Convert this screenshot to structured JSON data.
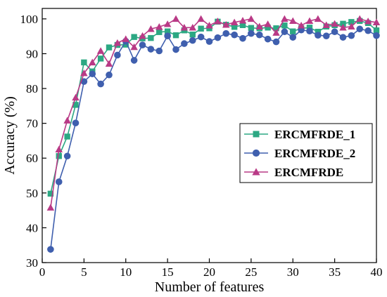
{
  "chart_data": {
    "type": "line",
    "title": "",
    "xlabel": "Number of features",
    "ylabel": "Accuracy (%)",
    "xlim": [
      0,
      40
    ],
    "ylim": [
      30,
      103
    ],
    "xticks": [
      "0",
      "5",
      "10",
      "15",
      "20",
      "25",
      "30",
      "35",
      "40"
    ],
    "yticks": [
      "30",
      "40",
      "50",
      "60",
      "70",
      "80",
      "90",
      "100"
    ],
    "grid": false,
    "legend_position": "center-right",
    "x": [
      1,
      2,
      3,
      4,
      5,
      6,
      7,
      8,
      9,
      10,
      11,
      12,
      13,
      14,
      15,
      16,
      17,
      18,
      19,
      20,
      21,
      22,
      23,
      24,
      25,
      26,
      27,
      28,
      29,
      30,
      31,
      32,
      33,
      34,
      35,
      36,
      37,
      38,
      39,
      40
    ],
    "series": [
      {
        "name": "ERCMFRDE_1",
        "color": "#2ca883",
        "marker": "square",
        "values": [
          49.8,
          60.6,
          66.2,
          75.3,
          87.5,
          84.9,
          88.6,
          91.8,
          92.5,
          92.6,
          94.8,
          94.4,
          94.5,
          96.2,
          96.4,
          95.3,
          96.7,
          95.5,
          97.2,
          97.3,
          99.2,
          98.3,
          97.7,
          98.2,
          97.4,
          97.3,
          97.5,
          97.3,
          98.1,
          96.4,
          97.3,
          97.5,
          96.3,
          97.8,
          98.2,
          98.6,
          99.1,
          99.4,
          98.8,
          96.7
        ]
      },
      {
        "name": "ERCMFRDE_2",
        "color": "#3f5fae",
        "marker": "circle",
        "values": [
          33.8,
          53.2,
          60.6,
          70.1,
          82.0,
          84.2,
          81.3,
          83.9,
          89.6,
          93.6,
          88.1,
          92.5,
          91.3,
          90.8,
          95.1,
          91.2,
          92.9,
          93.8,
          94.8,
          93.5,
          94.6,
          95.8,
          95.4,
          94.4,
          95.8,
          95.4,
          94.2,
          93.4,
          96.3,
          94.7,
          96.8,
          96.5,
          95.3,
          95.1,
          96.3,
          94.7,
          95.2,
          97.1,
          96.6,
          95.2
        ]
      },
      {
        "name": "ERCMFRDE",
        "color": "#b93a86",
        "marker": "triangle",
        "values": [
          45.8,
          62.5,
          70.8,
          77.4,
          84.4,
          87.5,
          90.8,
          87.1,
          93.1,
          94.2,
          91.9,
          95.1,
          97.1,
          97.7,
          98.5,
          100.0,
          97.5,
          97.5,
          100.0,
          98.1,
          99.3,
          98.3,
          99.0,
          99.5,
          100.0,
          97.8,
          98.5,
          96.0,
          100.0,
          99.4,
          98.1,
          99.4,
          100.0,
          98.2,
          98.6,
          97.5,
          97.8,
          100.0,
          99.3,
          99.0
        ]
      }
    ]
  }
}
